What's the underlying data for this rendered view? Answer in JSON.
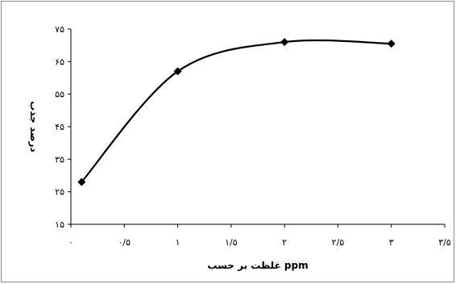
{
  "chart_data": {
    "type": "line",
    "title": "",
    "xlabel": "غلظت بر حسب ppm",
    "ylabel": "درصد جذب",
    "x": [
      0.1,
      1,
      2,
      3
    ],
    "series": [
      {
        "values": [
          28,
          62,
          71,
          70.5
        ]
      }
    ],
    "xlim": [
      0,
      3.5
    ],
    "ylim": [
      15,
      75
    ],
    "x_ticks": [
      0,
      0.5,
      1,
      1.5,
      2,
      2.5,
      3,
      3.5
    ],
    "x_tick_labels": [
      "۰",
      "۰/۵",
      "۱",
      "۱/۵",
      "۲",
      "۲/۵",
      "۳",
      "۳/۵"
    ],
    "y_ticks": [
      15,
      25,
      35,
      45,
      55,
      65,
      75
    ],
    "y_tick_labels": [
      "۱۵",
      "۲۵",
      "۳۵",
      "۴۵",
      "۵۵",
      "۶۵",
      "۷۵"
    ],
    "grid": false,
    "legend": "none",
    "line_color": "#000000",
    "marker": "diamond"
  }
}
